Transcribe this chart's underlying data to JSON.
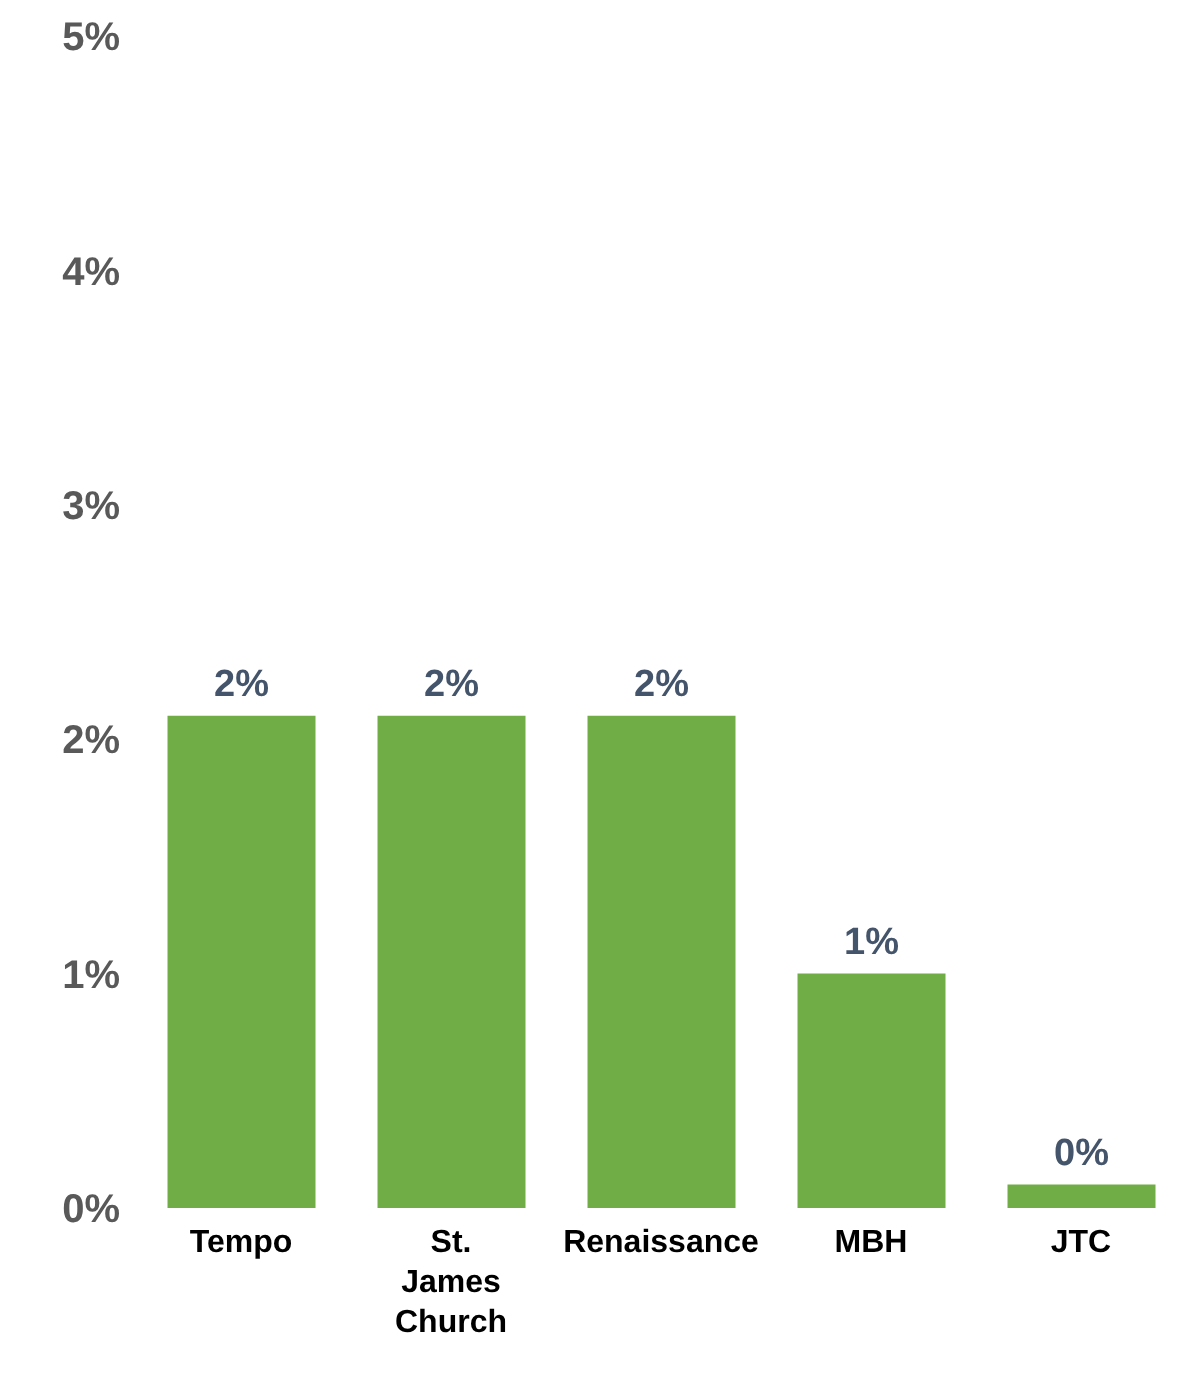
{
  "chart_data": {
    "type": "bar",
    "categories": [
      "Tempo",
      "St. James Church",
      "Renaissance",
      "MBH",
      "JTC"
    ],
    "values": [
      2.1,
      2.1,
      2.1,
      1.0,
      0.1
    ],
    "value_labels": [
      "2%",
      "2%",
      "2%",
      "1%",
      "0%"
    ],
    "color": "#70ad47",
    "ylim": [
      0,
      5
    ],
    "yticks": [
      {
        "value": 0,
        "label": "0%"
      },
      {
        "value": 1,
        "label": "1%"
      },
      {
        "value": 2,
        "label": "2%"
      },
      {
        "value": 3,
        "label": "3%"
      },
      {
        "value": 4,
        "label": "4%"
      },
      {
        "value": 5,
        "label": "5%"
      }
    ],
    "grid": false,
    "legend": false
  }
}
